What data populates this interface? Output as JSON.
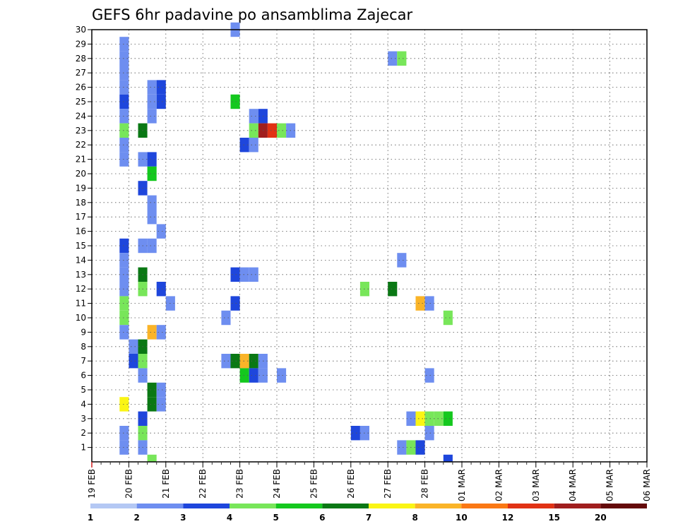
{
  "chart_data": {
    "type": "heatmap",
    "title": "GEFS 6hr padavine po ansamblima Zajecar",
    "x_tick_labels": [
      "19 FEB",
      "20 FEB",
      "21 FEB",
      "22 FEB",
      "23 FEB",
      "24 FEB",
      "25 FEB",
      "26 FEB",
      "27 FEB",
      "28 FEB",
      "01 MAR",
      "02 MAR",
      "03 MAR",
      "04 MAR",
      "05 MAR",
      "06 MAR"
    ],
    "x_steps_per_day": 4,
    "y_tick_labels": [
      "1",
      "2",
      "3",
      "4",
      "5",
      "6",
      "7",
      "8",
      "9",
      "10",
      "11",
      "12",
      "13",
      "14",
      "15",
      "16",
      "17",
      "18",
      "19",
      "20",
      "21",
      "22",
      "23",
      "24",
      "25",
      "26",
      "27",
      "28",
      "29",
      "30"
    ],
    "ylim": [
      0,
      30
    ],
    "grid": true,
    "colorbar": {
      "placement": "bottom",
      "labels": [
        "1",
        "2",
        "3",
        "4",
        "5",
        "6",
        "7",
        "8",
        "10",
        "12",
        "15",
        "20"
      ],
      "colors": [
        "#b4c8f4",
        "#6e8ef0",
        "#1e46dc",
        "#78e65a",
        "#14c81e",
        "#0a7814",
        "#faf514",
        "#fab428",
        "#fa7814",
        "#e13214",
        "#a01e1e",
        "#640a0a"
      ]
    },
    "cells": [
      [
        3,
        29,
        1
      ],
      [
        3,
        28,
        1
      ],
      [
        3,
        27,
        1
      ],
      [
        3,
        26,
        1
      ],
      [
        3,
        25,
        2
      ],
      [
        3,
        24,
        1
      ],
      [
        3,
        23,
        3
      ],
      [
        3,
        22,
        1
      ],
      [
        3,
        21,
        1
      ],
      [
        3,
        15,
        2
      ],
      [
        3,
        14,
        1
      ],
      [
        3,
        13,
        1
      ],
      [
        3,
        12,
        1
      ],
      [
        3,
        11,
        3
      ],
      [
        3,
        10,
        3
      ],
      [
        3,
        9,
        1
      ],
      [
        3,
        4,
        6
      ],
      [
        3,
        2,
        1
      ],
      [
        3,
        1,
        1
      ],
      [
        6,
        26,
        1
      ],
      [
        7,
        26,
        2
      ],
      [
        7,
        25,
        2
      ],
      [
        6,
        25,
        1
      ],
      [
        6,
        24,
        1
      ],
      [
        5,
        23,
        5
      ],
      [
        5,
        21,
        1
      ],
      [
        6,
        21,
        2
      ],
      [
        6,
        20,
        4
      ],
      [
        5,
        19,
        2
      ],
      [
        6,
        18,
        1
      ],
      [
        6,
        17,
        1
      ],
      [
        7,
        16,
        1
      ],
      [
        5,
        15,
        1
      ],
      [
        6,
        15,
        1
      ],
      [
        5,
        13,
        5
      ],
      [
        5,
        12,
        3
      ],
      [
        7,
        12,
        2
      ],
      [
        8,
        11,
        1
      ],
      [
        6,
        9,
        7
      ],
      [
        7,
        9,
        1
      ],
      [
        4,
        8,
        1
      ],
      [
        5,
        8,
        5
      ],
      [
        4,
        7,
        2
      ],
      [
        5,
        7,
        3
      ],
      [
        5,
        6,
        1
      ],
      [
        6,
        5,
        5
      ],
      [
        7,
        5,
        1
      ],
      [
        6,
        4,
        5
      ],
      [
        7,
        4,
        1
      ],
      [
        5,
        3,
        2
      ],
      [
        5,
        2,
        3
      ],
      [
        5,
        1,
        1
      ],
      [
        6,
        0,
        3
      ],
      [
        15,
        30,
        1
      ],
      [
        15,
        25,
        4
      ],
      [
        17,
        24,
        1
      ],
      [
        18,
        24,
        2
      ],
      [
        16,
        22,
        2
      ],
      [
        17,
        22,
        1
      ],
      [
        17,
        23,
        3
      ],
      [
        18,
        23,
        10
      ],
      [
        19,
        23,
        9
      ],
      [
        20,
        23,
        3
      ],
      [
        21,
        23,
        1
      ],
      [
        15,
        13,
        2
      ],
      [
        16,
        13,
        1
      ],
      [
        17,
        13,
        1
      ],
      [
        15,
        11,
        2
      ],
      [
        14,
        10,
        1
      ],
      [
        14,
        7,
        1
      ],
      [
        15,
        7,
        5
      ],
      [
        16,
        7,
        7
      ],
      [
        17,
        7,
        5
      ],
      [
        18,
        7,
        1
      ],
      [
        16,
        6,
        4
      ],
      [
        17,
        6,
        2
      ],
      [
        18,
        6,
        1
      ],
      [
        20,
        6,
        1
      ],
      [
        28,
        2,
        2
      ],
      [
        29,
        2,
        1
      ],
      [
        29,
        12,
        3
      ],
      [
        32,
        28,
        1
      ],
      [
        33,
        28,
        3
      ],
      [
        33,
        14,
        1
      ],
      [
        32,
        12,
        5
      ],
      [
        33,
        1,
        1
      ],
      [
        34,
        1,
        3
      ],
      [
        35,
        1,
        2
      ],
      [
        34,
        3,
        1
      ],
      [
        35,
        3,
        6
      ],
      [
        36,
        3,
        3
      ],
      [
        37,
        3,
        3
      ],
      [
        38,
        3,
        4
      ],
      [
        36,
        2,
        1
      ],
      [
        35,
        11,
        7
      ],
      [
        36,
        11,
        1
      ],
      [
        36,
        6,
        1
      ],
      [
        38,
        10,
        3
      ],
      [
        38,
        0,
        2
      ]
    ]
  }
}
